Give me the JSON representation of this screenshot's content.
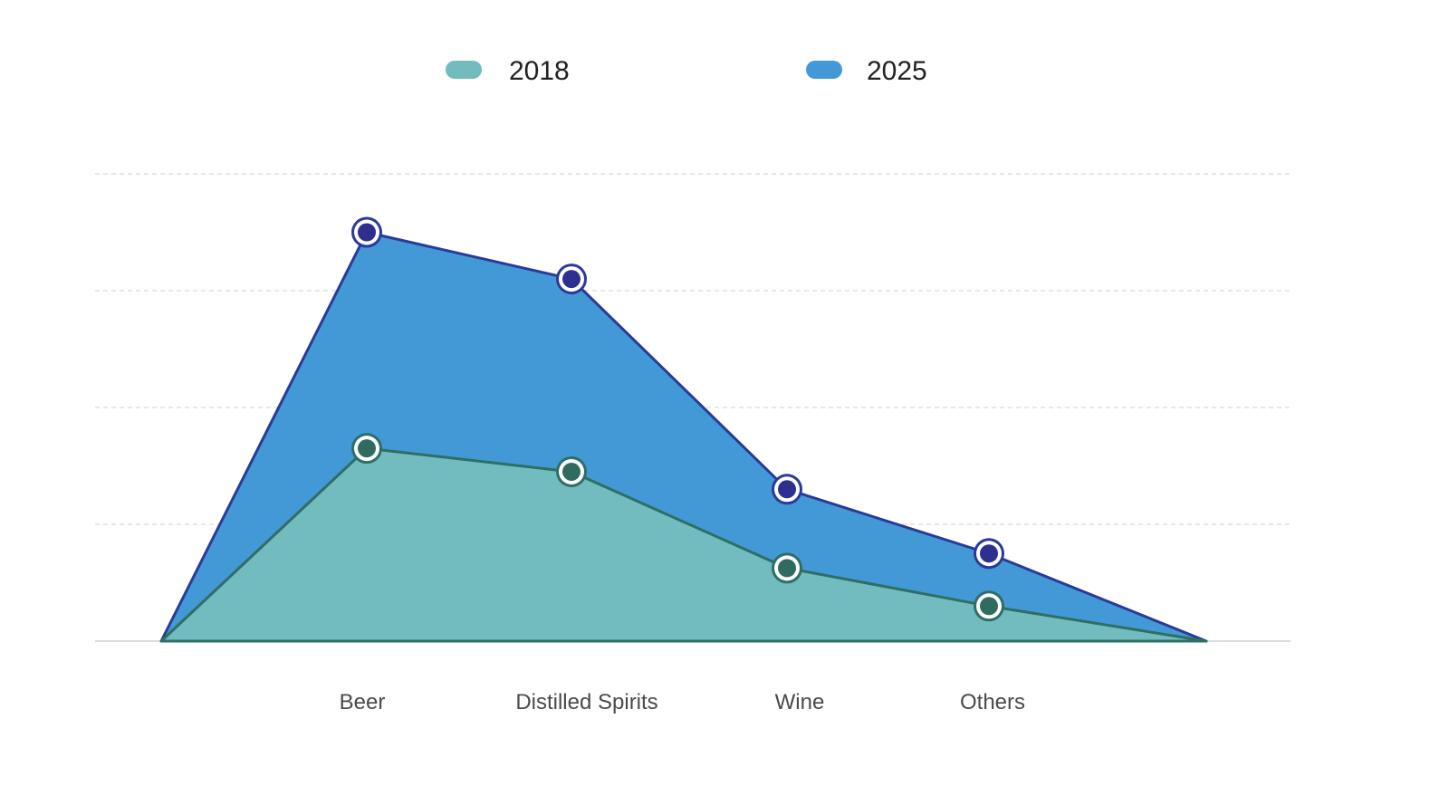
{
  "chart_data": {
    "type": "area",
    "title": "",
    "xlabel": "",
    "ylabel": "",
    "categories": [
      "Beer",
      "Distilled Spirits",
      "Wine",
      "Others"
    ],
    "series": [
      {
        "name": "2018",
        "values": [
          33,
          29,
          12.5,
          6
        ],
        "color": "#72bcbf",
        "line_color": "#2d6f63",
        "marker_color": "#2f6b5e"
      },
      {
        "name": "2025",
        "values": [
          70,
          62,
          26,
          15
        ],
        "color": "#4299d6",
        "line_color": "#2a3a9a",
        "marker_color": "#2f2f8f"
      }
    ],
    "ylim": [
      0,
      80
    ],
    "y_gridlines": [
      0,
      20,
      40,
      60,
      80
    ],
    "y_tick_labels_shown": false,
    "x_range_padding": "area starts and ends at zero beyond the first and last category",
    "grid": true,
    "legend": {
      "position": "top-center",
      "marker_shape": "pill"
    }
  }
}
